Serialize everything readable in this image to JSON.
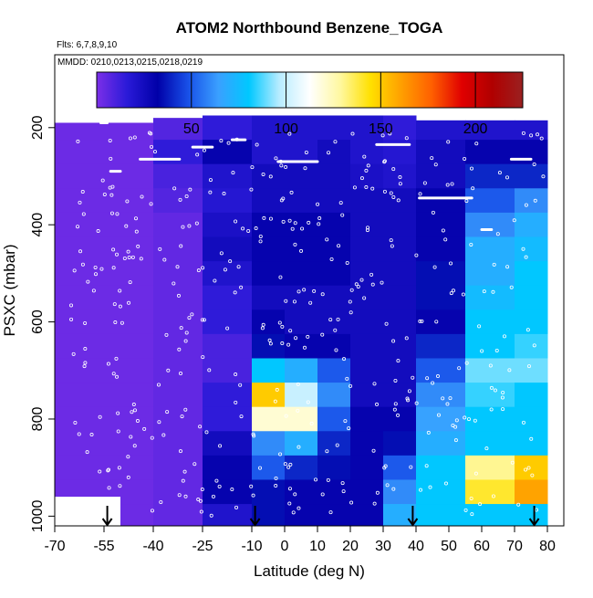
{
  "header": {
    "title": "ATOM2 Northbound Benzene_TOGA",
    "flights": "Flts: 6,7,8,9,10",
    "mmdd": "MMDD: 0210,0213,0215,0218,0219"
  },
  "colorbar": {
    "range": [
      0,
      225
    ],
    "tick_values": [
      50,
      100,
      150,
      200
    ],
    "tick_labels": [
      "50",
      "100",
      "150",
      "200"
    ],
    "colors": [
      "#7b2fe8",
      "#2a1ad8",
      "#0000a8",
      "#1850e8",
      "#3aa0ff",
      "#00c8ff",
      "#b8ecff",
      "#ffffff",
      "#fff8a0",
      "#ffe000",
      "#ffa000",
      "#ff6000",
      "#e00000",
      "#b00000",
      "#9a2020"
    ]
  },
  "chart_data": {
    "type": "heatmap",
    "title": "ATOM2 Northbound Benzene_TOGA",
    "xlabel": "Latitude (deg N)",
    "ylabel": "PSXC (mbar)",
    "xlim": [
      -70,
      85
    ],
    "ylim": [
      1020,
      50
    ],
    "y_reversed": true,
    "xticks": [
      -70,
      -55,
      -40,
      -25,
      -10,
      0,
      10,
      20,
      30,
      40,
      50,
      60,
      70,
      80
    ],
    "xtick_labels": [
      "-70",
      "-55",
      "-40",
      "-25",
      "-10",
      "0",
      "10",
      "20",
      "30",
      "40",
      "50",
      "60",
      "70",
      "80"
    ],
    "yticks": [
      200,
      400,
      600,
      800,
      1000
    ],
    "ytick_labels": [
      "200",
      "400",
      "600",
      "800",
      "1000"
    ],
    "colorbar_label": "",
    "arrow_latitudes": [
      -54,
      -9,
      39,
      76
    ],
    "pressure_levels": [
      200,
      250,
      300,
      350,
      400,
      450,
      500,
      550,
      600,
      650,
      700,
      750,
      800,
      850,
      900,
      950,
      1000
    ],
    "latitude_bands": [
      {
        "lat": [
          -70,
          -40
        ],
        "benzene_pptv": [
          3,
          3,
          3,
          3,
          3,
          3,
          3,
          3,
          3,
          3,
          3,
          3,
          3,
          3,
          3,
          3,
          3
        ]
      },
      {
        "lat": [
          -40,
          -25
        ],
        "benzene_pptv": [
          8,
          15,
          10,
          8,
          5,
          5,
          5,
          5,
          5,
          5,
          5,
          5,
          5,
          5,
          5,
          5,
          5
        ]
      },
      {
        "lat": [
          -25,
          -10
        ],
        "benzene_pptv": [
          15,
          30,
          20,
          18,
          22,
          25,
          20,
          15,
          15,
          10,
          10,
          15,
          15,
          25,
          30,
          30,
          20
        ]
      },
      {
        "lat": [
          -10,
          0
        ],
        "benzene_pptv": [
          20,
          20,
          25,
          25,
          30,
          30,
          30,
          25,
          30,
          35,
          80,
          150,
          120,
          60,
          50,
          35,
          35
        ]
      },
      {
        "lat": [
          0,
          10
        ],
        "benzene_pptv": [
          20,
          20,
          25,
          25,
          30,
          30,
          30,
          25,
          25,
          30,
          70,
          100,
          120,
          70,
          40,
          30,
          30
        ]
      },
      {
        "lat": [
          10,
          20
        ],
        "benzene_pptv": [
          20,
          25,
          25,
          25,
          30,
          30,
          30,
          25,
          25,
          30,
          50,
          60,
          50,
          40,
          35,
          30,
          30
        ]
      },
      {
        "lat": [
          20,
          30
        ],
        "benzene_pptv": [
          20,
          20,
          22,
          25,
          25,
          25,
          25,
          25,
          25,
          25,
          25,
          25,
          30,
          30,
          30,
          30,
          30
        ]
      },
      {
        "lat": [
          30,
          40
        ],
        "benzene_pptv": [
          15,
          18,
          20,
          25,
          25,
          25,
          25,
          25,
          25,
          25,
          25,
          25,
          30,
          35,
          50,
          60,
          70
        ]
      },
      {
        "lat": [
          40,
          55
        ],
        "benzene_pptv": [
          20,
          25,
          25,
          30,
          30,
          30,
          35,
          35,
          30,
          40,
          50,
          60,
          65,
          70,
          80,
          80,
          80
        ]
      },
      {
        "lat": [
          55,
          70
        ],
        "benzene_pptv": [
          20,
          30,
          40,
          50,
          60,
          70,
          70,
          75,
          80,
          80,
          90,
          85,
          80,
          80,
          130,
          140,
          80
        ]
      },
      {
        "lat": [
          70,
          80
        ],
        "benzene_pptv": [
          20,
          30,
          40,
          60,
          70,
          75,
          80,
          80,
          80,
          85,
          90,
          80,
          80,
          80,
          150,
          160,
          80
        ]
      }
    ]
  }
}
